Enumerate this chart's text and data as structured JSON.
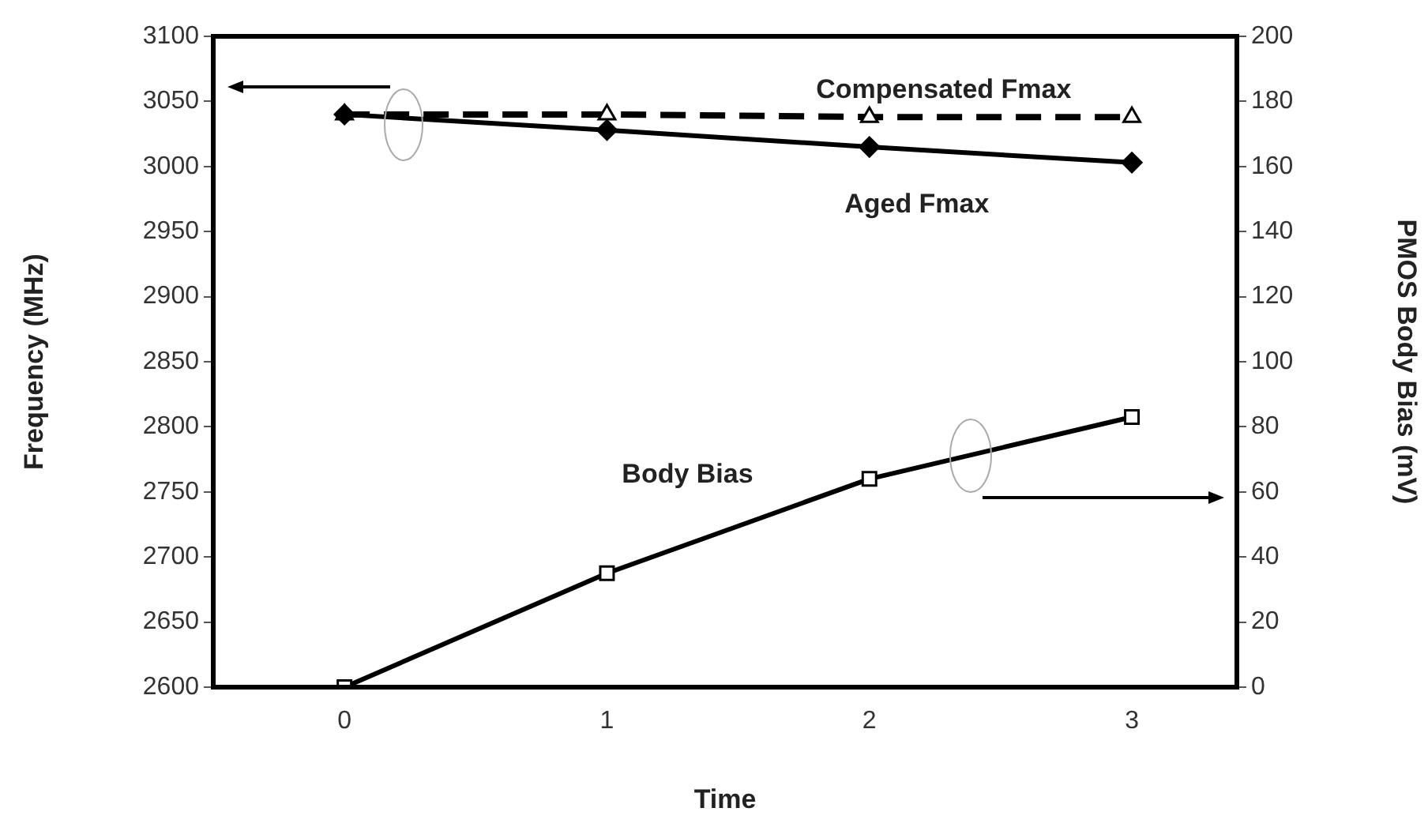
{
  "chart_data": {
    "type": "line",
    "xlabel": "Time",
    "ylabel": "Frequency (MHz)",
    "y2label": "PMOS Body Bias (mV)",
    "x": [
      0,
      1,
      2,
      3
    ],
    "xlim": [
      -0.5,
      3.4
    ],
    "xticks": [
      0,
      1,
      2,
      3
    ],
    "ylim": [
      2600,
      3100
    ],
    "yticks": [
      2600,
      2650,
      2700,
      2750,
      2800,
      2850,
      2900,
      2950,
      3000,
      3050,
      3100
    ],
    "y2lim": [
      0,
      200
    ],
    "y2ticks": [
      0,
      20,
      40,
      60,
      80,
      100,
      120,
      140,
      160,
      180,
      200
    ],
    "grid": false,
    "legend": false,
    "series": [
      {
        "name": "Compensated Fmax",
        "color": "#000000",
        "values": [
          3040,
          3040,
          3038,
          3038
        ],
        "marker": "triangle",
        "line_style": "dashed"
      },
      {
        "name": "Aged Fmax",
        "color": "#000000",
        "values": [
          3040,
          3028,
          3015,
          3003
        ],
        "marker": "diamond",
        "line_style": "solid"
      },
      {
        "name": "Body Bias",
        "color": "#000000",
        "values": [
          0,
          35,
          64,
          83
        ],
        "marker": "square",
        "line_style": "solid",
        "axis": "y2"
      }
    ]
  }
}
